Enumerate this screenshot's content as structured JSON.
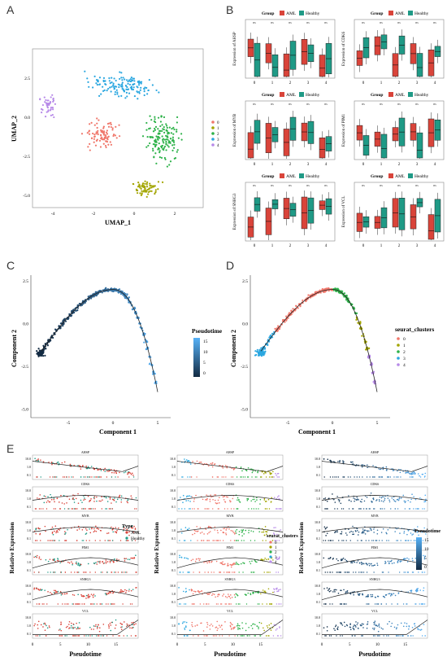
{
  "panels": {
    "A": {
      "letter": "A",
      "xlabel": "UMAP_1",
      "ylabel": "UMAP_2",
      "xticks": [
        "-4",
        "-2",
        "0",
        "2"
      ],
      "yticks": [
        "2.5",
        "0.0",
        "-2.5",
        "-5.0"
      ],
      "legend": [
        "0",
        "1",
        "2",
        "3",
        "4"
      ]
    },
    "B": {
      "letter": "B",
      "legend_title": "Group",
      "legend_items": [
        "AML",
        "Healthy"
      ],
      "genes": [
        "AHSP",
        "CDK6",
        "MYB",
        "PIM1",
        "SNHG3",
        "VCL"
      ],
      "ylabel_prefix": "Expression of",
      "categories": [
        "0",
        "1",
        "2",
        "3",
        "4"
      ],
      "sig_row": [
        "ns",
        "ns",
        "ns",
        "ns",
        "ns"
      ]
    },
    "C": {
      "letter": "C",
      "xlabel": "Component 1",
      "ylabel": "Component 2",
      "xticks": [
        "-5",
        "0",
        "5"
      ],
      "yticks": [
        "2.5",
        "0.0",
        "-2.5",
        "-5.0"
      ],
      "legend_title": "Pseudotime",
      "legend_ticks": [
        "15",
        "10",
        "5",
        "0"
      ]
    },
    "D": {
      "letter": "D",
      "xlabel": "Component 1",
      "ylabel": "Component 2",
      "xticks": [
        "-5",
        "0",
        "5"
      ],
      "yticks": [
        "2.5",
        "0.0",
        "-2.5",
        "-5.0"
      ],
      "legend_title": "seurat_clusters",
      "legend_items": [
        "0",
        "1",
        "2",
        "3",
        "4"
      ]
    },
    "E": {
      "letter": "E",
      "xlabel": "Pseudotime",
      "ylabel": "Relative Expression",
      "genes": [
        "AHSP",
        "CDK6",
        "MYB",
        "PIM1",
        "SNHG3",
        "VCL"
      ],
      "xticks": [
        "0",
        "5",
        "10",
        "15"
      ],
      "col1_legend_title": "Type",
      "col1_legend_items": [
        "AML",
        "Healthy"
      ],
      "col2_legend_title": "seurat_clusters",
      "col2_legend_items": [
        "0",
        "1",
        "2",
        "3",
        "4"
      ],
      "col3_legend_title": "Pseudotime",
      "col3_legend_ticks": [
        "15",
        "10",
        "5",
        "0"
      ]
    }
  },
  "colors": {
    "cluster0": "#f0776b",
    "cluster1": "#a3a500",
    "cluster2": "#2eb24a",
    "cluster3": "#2ba7e0",
    "cluster4": "#b78ae8",
    "aml": "#d9443a",
    "healthy": "#1f9a86",
    "pseudo_dark": "#132b43",
    "pseudo_light": "#56b1f7"
  }
}
